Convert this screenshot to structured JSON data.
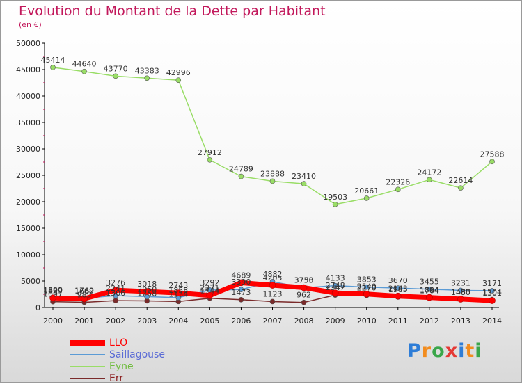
{
  "header": {
    "title": "Evolution du Montant de la Dette par Habitant",
    "subtitle": "(en €)"
  },
  "logo": {
    "text": "Proxiti",
    "colors": [
      "#2e7dd7",
      "#f28c1e",
      "#3aa64a",
      "#e53935",
      "#2e7dd7",
      "#f28c1e",
      "#3aa64a"
    ]
  },
  "chart_data": {
    "type": "line",
    "title": "Evolution du Montant de la Dette par Habitant",
    "ylabel": "(en €)",
    "xlabel": "",
    "ylim": [
      0,
      50000
    ],
    "yticks": [
      0,
      5000,
      10000,
      15000,
      20000,
      25000,
      30000,
      35000,
      40000,
      45000,
      50000
    ],
    "grid": false,
    "legend_position": "bottom-left",
    "x": [
      "2000",
      "2001",
      "2002",
      "2003",
      "2004",
      "2005",
      "2006",
      "2007",
      "2008",
      "2009",
      "2010",
      "2011",
      "2012",
      "2013",
      "2014"
    ],
    "series": [
      {
        "name": "LLO",
        "color": "#ff0000",
        "width": 7,
        "values": [
          1809,
          1662,
          3276,
          3018,
          2743,
          2271,
          4689,
          4205,
          3750,
          2748,
          2540,
          2143,
          1894,
          1588,
          1301
        ]
      },
      {
        "name": "Saillagouse",
        "color": "#5b9bd5",
        "width": 1.5,
        "values": [
          1890,
          1769,
          2241,
          2050,
          1858,
          3292,
          3390,
          4882,
          3733,
          4133,
          3853,
          3670,
          3455,
          3231,
          3171
        ]
      },
      {
        "name": "Eyne",
        "color": "#99dd66",
        "width": 1.5,
        "values": [
          45414,
          44640,
          43770,
          43383,
          42996,
          27912,
          24789,
          23888,
          23410,
          19503,
          20661,
          22326,
          24172,
          22614,
          27588
        ]
      },
      {
        "name": "Err",
        "color": "#7a2a2a",
        "width": 1.5,
        "values": [
          1097,
          985,
          1306,
          1258,
          1134,
          1744,
          1473,
          1123,
          962,
          2347,
          2270,
          1985,
          1764,
          1480,
          1504
        ]
      }
    ]
  }
}
